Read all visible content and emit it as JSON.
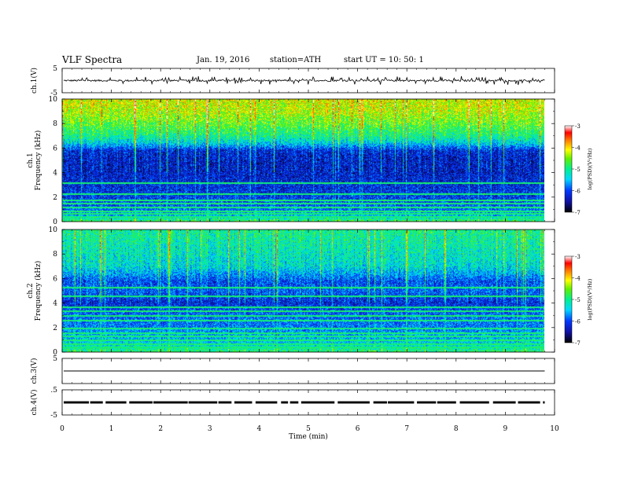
{
  "header": {
    "title": "VLF  Spectra",
    "date": "Jan. 19, 2016",
    "station": "station=ATH",
    "start": "start  UT  =    10: 50: 1"
  },
  "chart_data": [
    {
      "type": "line",
      "panel": "ch1-waveform",
      "ylabel": "ch.1(V)",
      "ylim": [
        -5,
        5
      ],
      "yticks": [
        "5",
        "-5"
      ],
      "xlim": [
        0,
        10
      ],
      "baseline": 0,
      "noise_amplitude": 0.35,
      "spike_amplitude": 1.6
    },
    {
      "type": "heatmap",
      "panel": "ch1-spectrogram",
      "ylabel": "ch.1\nFrequency (kHz)",
      "ylim": [
        0,
        10
      ],
      "yticks": [
        "0",
        "2",
        "4",
        "6",
        "8",
        "10"
      ],
      "xlim": [
        0,
        9.8
      ],
      "zlabel": "log(PSD)(V²/Hz)",
      "zlim": [
        -7,
        -3
      ],
      "colorbar_ticks": [
        "-3",
        "-4",
        "-5",
        "-6",
        "-7"
      ],
      "frequency_profile_khz": [
        0,
        0.5,
        1,
        2,
        3,
        4,
        5,
        5.8,
        6.4,
        7,
        8,
        9,
        10
      ],
      "log_psd_profile": [
        -4.8,
        -5.6,
        -5.9,
        -6.1,
        -6.2,
        -6.3,
        -6.3,
        -6.2,
        -5.4,
        -5.0,
        -4.6,
        -4.3,
        -4.2
      ],
      "variability": 0.55,
      "hum_lines_khz": [
        0.3,
        0.55,
        0.8,
        1.1,
        1.4,
        1.7,
        2.2,
        3.1
      ]
    },
    {
      "type": "heatmap",
      "panel": "ch2-spectrogram",
      "ylabel": "ch.2\nFrequency (kHz)",
      "ylim": [
        0,
        10
      ],
      "yticks": [
        "0",
        "2",
        "4",
        "6",
        "8",
        "10"
      ],
      "xlim": [
        0,
        9.8
      ],
      "zlabel": "log(PSD)(V²/Hz)",
      "zlim": [
        -7,
        -3
      ],
      "colorbar_ticks": [
        "-3",
        "-4",
        "-5",
        "-6",
        "-7"
      ],
      "frequency_profile_khz": [
        0,
        0.5,
        1,
        2,
        3,
        4,
        5,
        5.8,
        6.4,
        7,
        8,
        9,
        10
      ],
      "log_psd_profile": [
        -4.9,
        -5.3,
        -5.5,
        -5.8,
        -5.9,
        -6.2,
        -5.9,
        -6.0,
        -5.6,
        -5.3,
        -5.2,
        -5.1,
        -5.0
      ],
      "variability": 0.55,
      "hum_lines_khz": [
        0.3,
        0.6,
        0.9,
        1.2,
        1.5,
        1.9,
        2.5,
        2.9,
        3.3,
        3.6,
        4.5,
        5.2
      ]
    },
    {
      "type": "line",
      "panel": "ch3-waveform",
      "ylabel": "ch.3(V)",
      "ylim": [
        -5,
        5
      ],
      "yticks": [
        "5"
      ],
      "xlim": [
        0,
        10
      ],
      "baseline": 0
    },
    {
      "type": "line",
      "panel": "ch4-waveform",
      "ylabel": "ch.4(V)",
      "ylim": [
        -5,
        5
      ],
      "yticks": [
        ".5",
        "-5"
      ],
      "xlim": [
        0,
        10
      ],
      "baseline": 0,
      "band_amplitude": 0.45
    }
  ],
  "xaxis": {
    "label": "Time  (min)",
    "ticks": [
      "0",
      "1",
      "2",
      "3",
      "4",
      "5",
      "6",
      "7",
      "8",
      "9",
      "10"
    ],
    "range": [
      0,
      10
    ]
  }
}
